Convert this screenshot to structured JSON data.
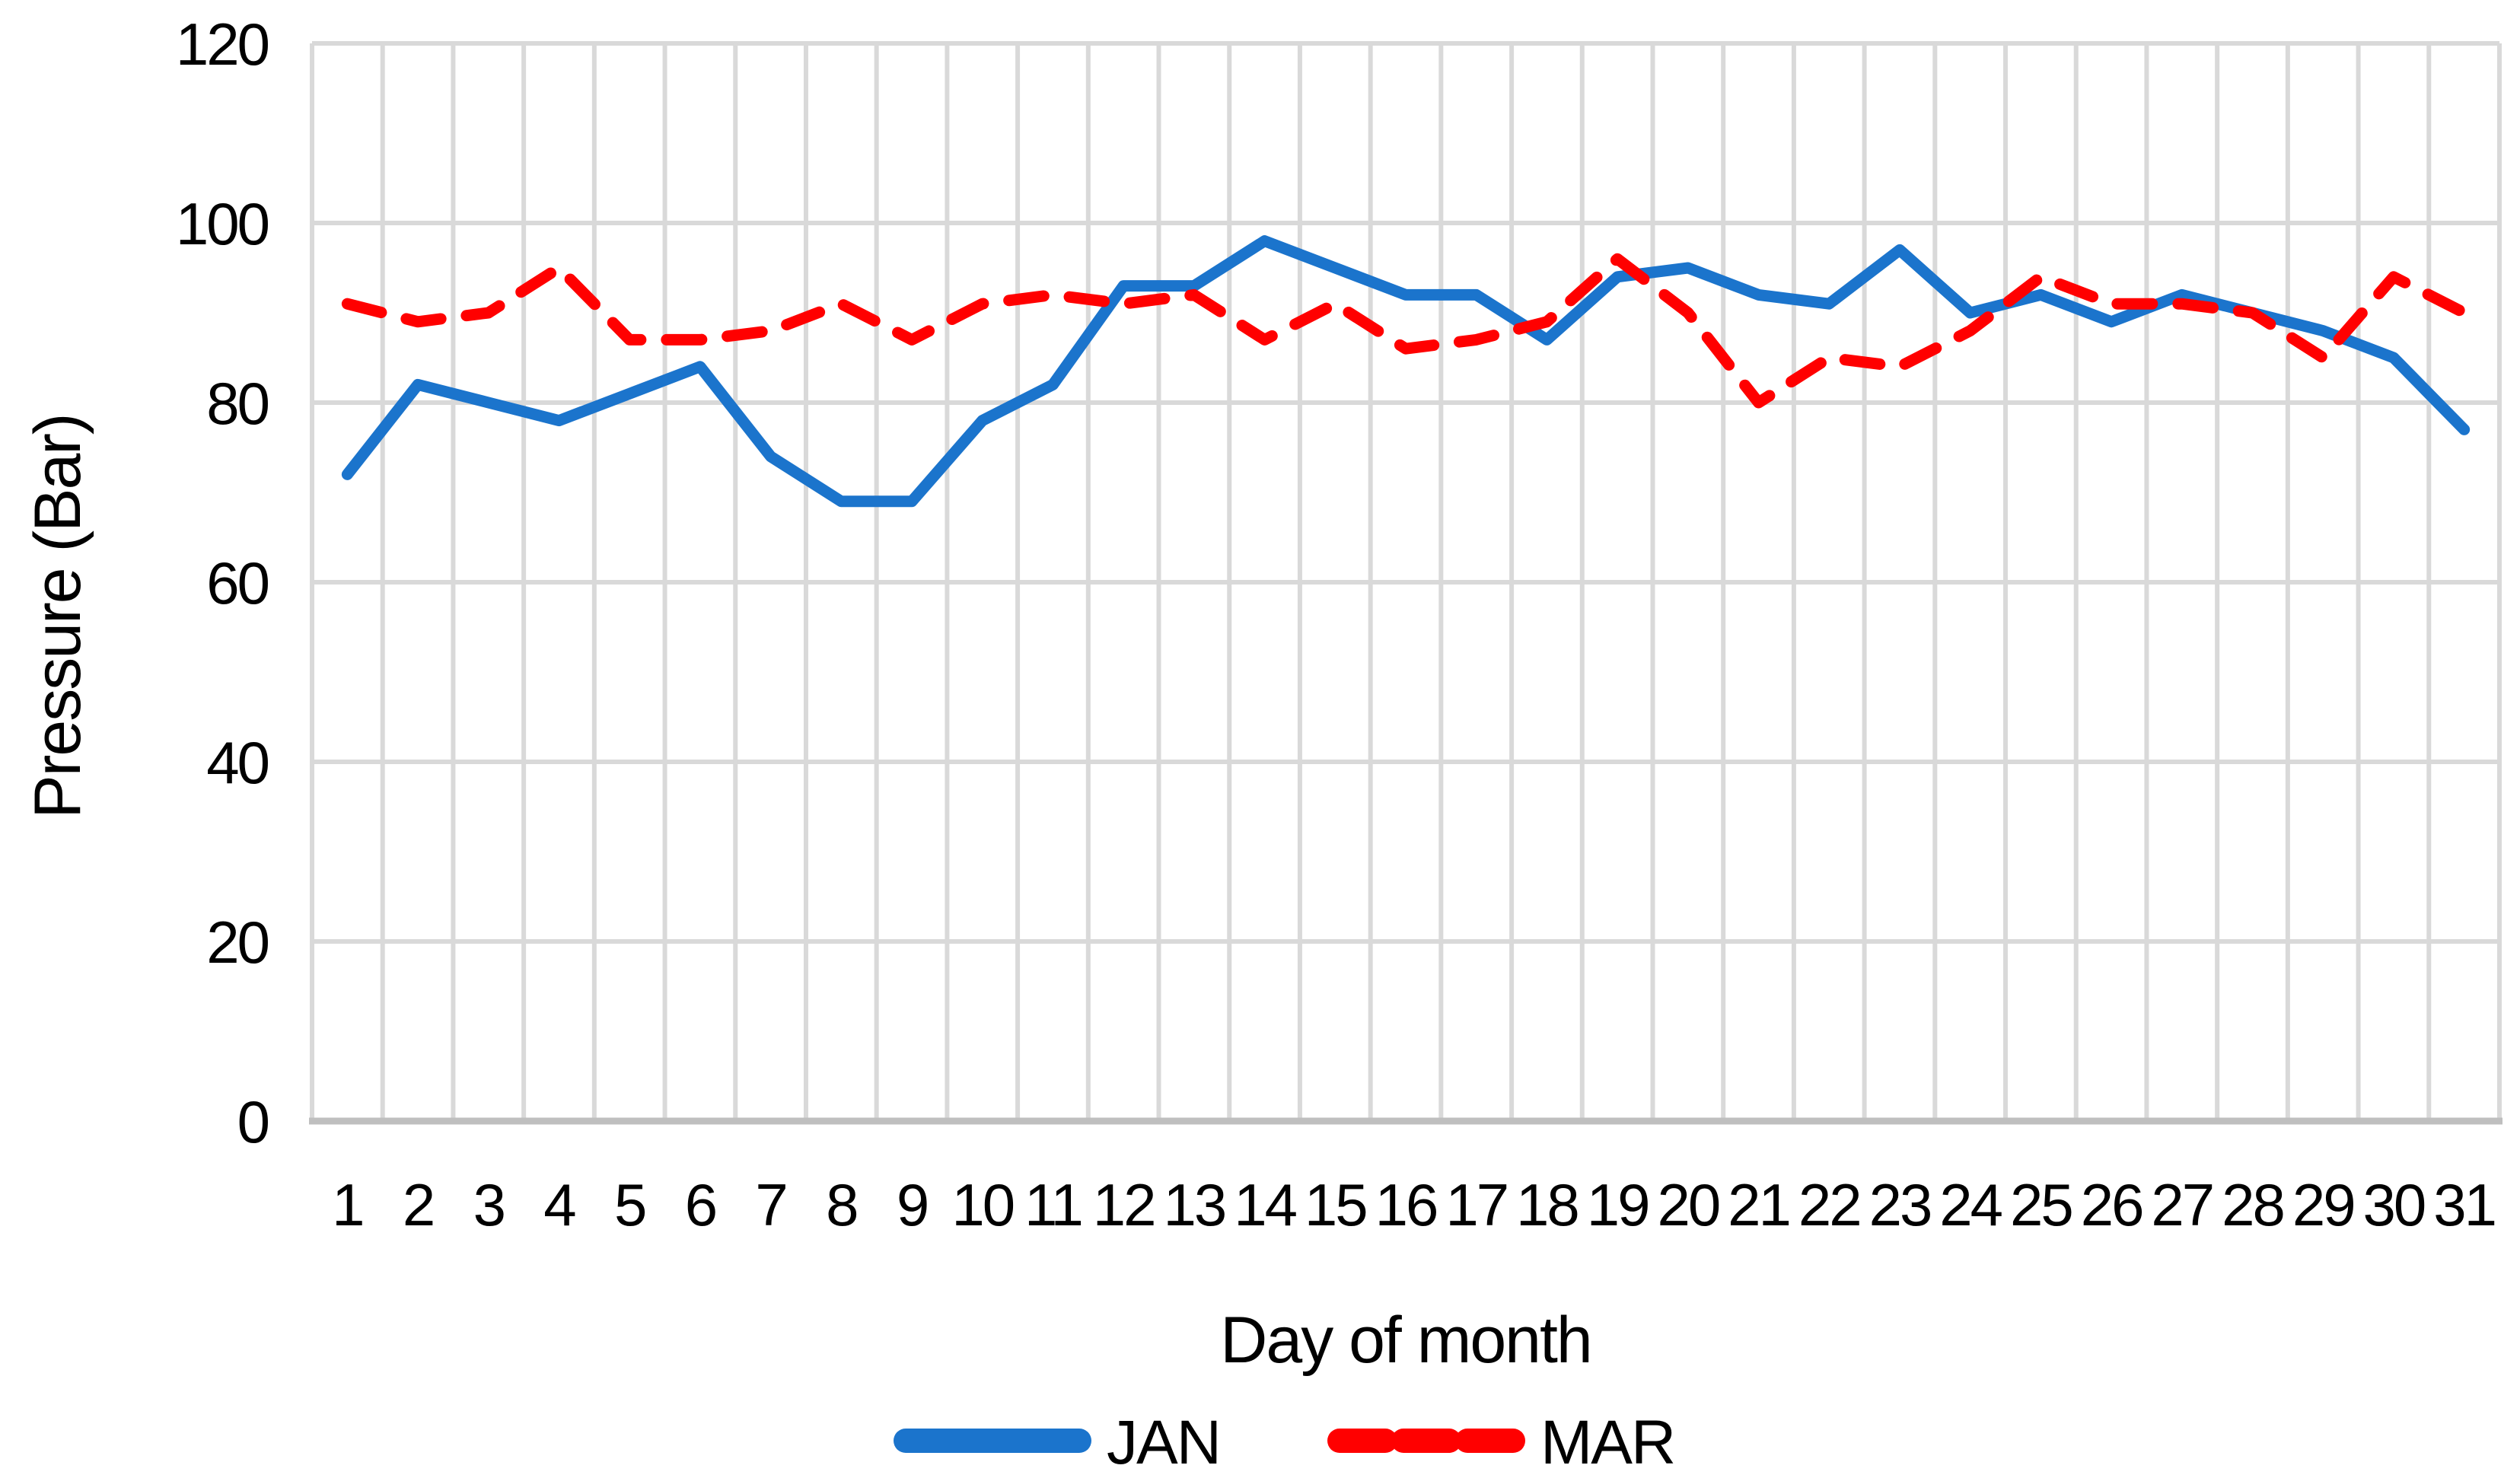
{
  "chart_data": {
    "type": "line",
    "title": "",
    "xlabel": "Day of month",
    "ylabel": "Pressure (Bar)",
    "x": [
      1,
      2,
      3,
      4,
      5,
      6,
      7,
      8,
      9,
      10,
      11,
      12,
      13,
      14,
      15,
      16,
      17,
      18,
      19,
      20,
      21,
      22,
      23,
      24,
      25,
      26,
      27,
      28,
      29,
      30,
      31
    ],
    "x_tick_labels": [
      "1",
      "2",
      "3",
      "4",
      "5",
      "6",
      "7",
      "8",
      "9",
      "10",
      "11",
      "12",
      "13",
      "14",
      "15",
      "16",
      "17",
      "18",
      "19",
      "20",
      "21",
      "22",
      "23",
      "24",
      "25",
      "26",
      "27",
      "28",
      "29",
      "30",
      "31"
    ],
    "y_ticks": [
      0,
      20,
      40,
      60,
      80,
      100,
      120
    ],
    "y_tick_labels": [
      "0",
      "20",
      "40",
      "60",
      "80",
      "100",
      "120"
    ],
    "ylim": [
      0,
      120
    ],
    "grid": "both",
    "legend_position": "bottom-center",
    "series": [
      {
        "name": "JAN",
        "style": "solid",
        "color": "#1b74cc",
        "values": [
          72,
          82,
          80,
          78,
          81,
          84,
          74,
          69,
          69,
          78,
          82,
          93,
          93,
          98,
          95,
          92,
          92,
          87,
          94,
          95,
          92,
          91,
          97,
          90,
          92,
          89,
          92,
          90,
          88,
          85,
          77
        ]
      },
      {
        "name": "MAR",
        "style": "dashed",
        "color": "#ff0000",
        "values": [
          91,
          89,
          90,
          95,
          87,
          87,
          88,
          91,
          87,
          91,
          92,
          91,
          92,
          87,
          91,
          86,
          87,
          89,
          96,
          90,
          80,
          85,
          84,
          88,
          94,
          91,
          91,
          90,
          85,
          94,
          90
        ]
      }
    ]
  },
  "colors": {
    "background": "#ffffff",
    "gridline": "#d9d9d9",
    "axis_line": "#bfbfbf",
    "text": "#000000",
    "jan_line": "#1b74cc",
    "mar_line": "#ff0000"
  },
  "legend": {
    "items": [
      {
        "label": "JAN",
        "swatch": "solid-line"
      },
      {
        "label": "MAR",
        "swatch": "dashed-line"
      }
    ]
  }
}
